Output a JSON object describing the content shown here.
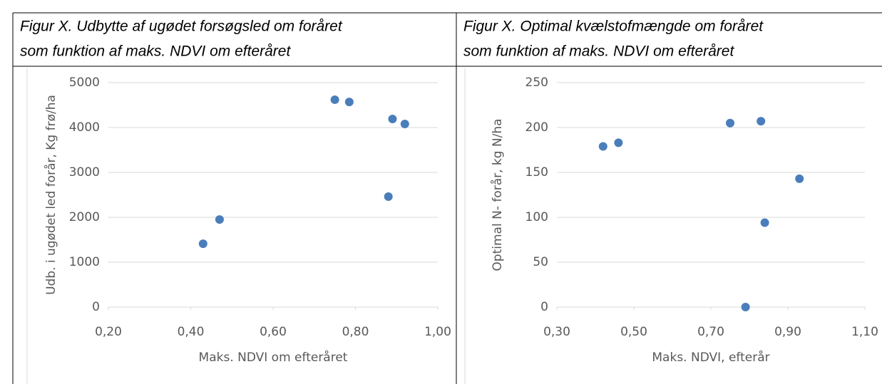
{
  "chart_data": [
    {
      "type": "scatter",
      "title": [
        "Figur X. Udbytte af ugødet forsøgsled om foråret",
        "som funktion af maks. NDVI om efteråret"
      ],
      "x_label": "Maks. NDVI om efteråret",
      "y_label": "Udb. i ugødet led forår, Kg frø/ha",
      "color": "#4a7ebb",
      "x": [
        0.43,
        0.47,
        0.75,
        0.785,
        0.88,
        0.89,
        0.92
      ],
      "values": [
        1410,
        1950,
        4620,
        4570,
        2460,
        4190,
        4080
      ],
      "xlim": [
        0.2,
        1.0
      ],
      "xticks": [
        {
          "value": 0.2,
          "label": "0,20"
        },
        {
          "value": 0.4,
          "label": "0,40"
        },
        {
          "value": 0.6,
          "label": "0,60"
        },
        {
          "value": 0.8,
          "label": "0,80"
        },
        {
          "value": 1.0,
          "label": "1,00"
        }
      ],
      "ylim": [
        0,
        5000
      ],
      "yticks": [
        0,
        1000,
        2000,
        3000,
        4000,
        5000
      ],
      "grid": true
    },
    {
      "type": "scatter",
      "title": [
        "Figur X. Optimal kvælstofmængde om foråret",
        "som funktion af maks. NDVI om efteråret"
      ],
      "x_label": "Maks. NDVI, efterår",
      "y_label": "Optimal N- forår, kg N/ha",
      "color": "#4a7ebb",
      "x": [
        0.42,
        0.46,
        0.75,
        0.79,
        0.83,
        0.84,
        0.93
      ],
      "values": [
        179,
        183,
        205,
        0,
        207,
        94,
        143
      ],
      "xlim": [
        0.3,
        1.1
      ],
      "xticks": [
        {
          "value": 0.3,
          "label": "0,30"
        },
        {
          "value": 0.5,
          "label": "0,50"
        },
        {
          "value": 0.7,
          "label": "0,70"
        },
        {
          "value": 0.9,
          "label": "0,90"
        },
        {
          "value": 1.1,
          "label": "1,10"
        }
      ],
      "ylim": [
        0,
        250
      ],
      "yticks": [
        0,
        50,
        100,
        150,
        200,
        250
      ],
      "grid": true
    }
  ]
}
